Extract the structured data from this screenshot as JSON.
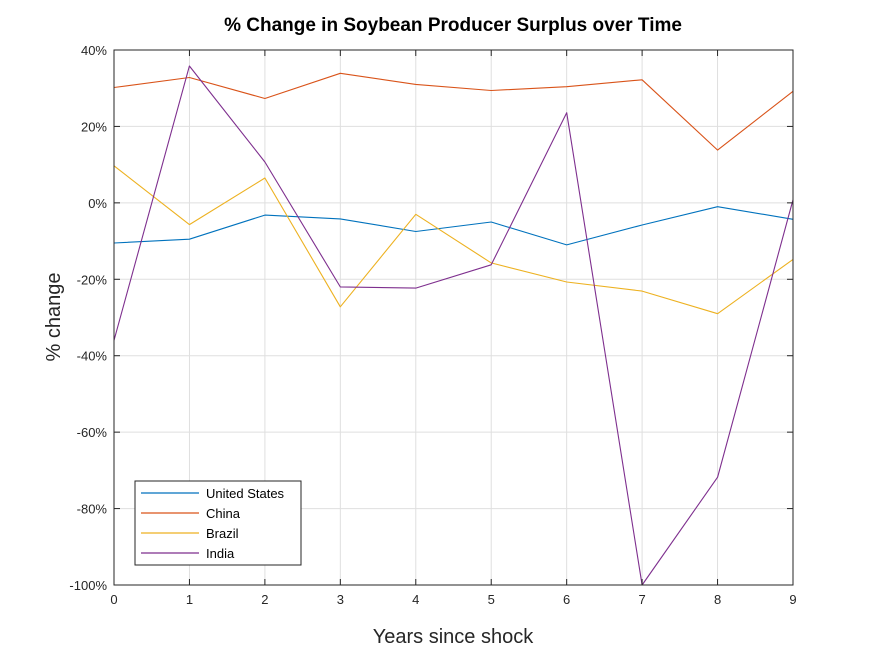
{
  "chart_data": {
    "type": "line",
    "title": "% Change in Soybean Producer Surplus over Time",
    "xlabel": "Years since shock",
    "ylabel": "% change",
    "x": [
      0,
      1,
      2,
      3,
      4,
      5,
      6,
      7,
      8,
      9
    ],
    "xlim": [
      0,
      9
    ],
    "ylim": [
      -100,
      40
    ],
    "x_ticks": [
      0,
      1,
      2,
      3,
      4,
      5,
      6,
      7,
      8,
      9
    ],
    "x_tick_labels": [
      "0",
      "1",
      "2",
      "3",
      "4",
      "5",
      "6",
      "7",
      "8",
      "9"
    ],
    "y_ticks": [
      40,
      20,
      0,
      -20,
      -40,
      -60,
      -80,
      -100
    ],
    "y_tick_labels": [
      "40%",
      "20%",
      "0%",
      "-20%",
      "-40%",
      "-60%",
      "-80%",
      "-100%"
    ],
    "grid": true,
    "legend_position": "bottom-left",
    "series": [
      {
        "name": "United States",
        "color": "#0072BD",
        "values": [
          -10.5,
          -9.5,
          -3.2,
          -4.2,
          -7.5,
          -5.0,
          -11.0,
          -5.8,
          -1.0,
          -4.3
        ]
      },
      {
        "name": "China",
        "color": "#D95319",
        "values": [
          30.2,
          32.8,
          27.3,
          33.9,
          31.0,
          29.4,
          30.4,
          32.2,
          13.8,
          29.2
        ]
      },
      {
        "name": "Brazil",
        "color": "#EDB120",
        "values": [
          9.7,
          -5.7,
          6.5,
          -27.2,
          -3.0,
          -15.7,
          -20.7,
          -23.1,
          -29.0,
          -14.8
        ]
      },
      {
        "name": "India",
        "color": "#7E2F8E",
        "values": [
          -36.0,
          35.8,
          10.7,
          -22.0,
          -22.3,
          -16.2,
          23.6,
          -100.0,
          -71.8,
          0.8
        ]
      }
    ]
  }
}
